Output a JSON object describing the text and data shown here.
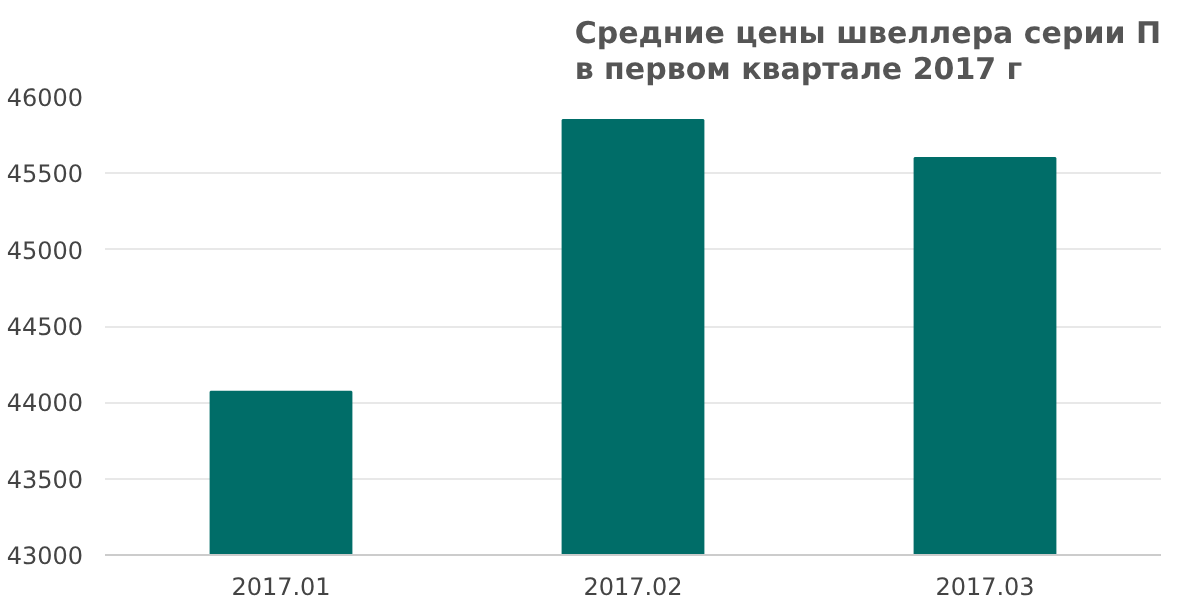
{
  "chart_data": {
    "type": "bar",
    "title": "Средние цены швеллера серии П\nв первом квартале 2017 г",
    "categories": [
      "2017.01",
      "2017.02",
      "2017.03"
    ],
    "values": [
      44070,
      45850,
      45600
    ],
    "color": "#006d68",
    "ylim": [
      43000,
      46000
    ],
    "yticks": [
      43000,
      43500,
      44000,
      44500,
      45000,
      45500,
      46000
    ],
    "grid": "y"
  }
}
